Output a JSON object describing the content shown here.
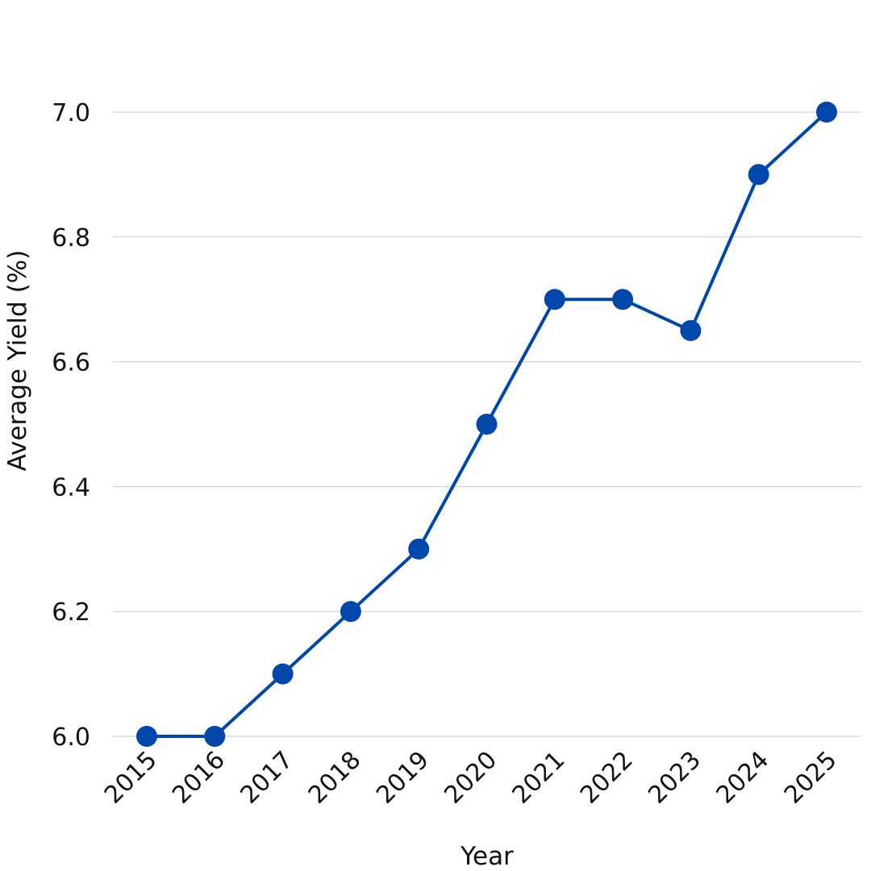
{
  "chart_data": {
    "type": "line",
    "title": "",
    "xlabel": "Year",
    "ylabel": "Average Yield (%)",
    "categories": [
      "2015",
      "2016",
      "2017",
      "2018",
      "2019",
      "2020",
      "2021",
      "2022",
      "2023",
      "2024",
      "2025"
    ],
    "series": [
      {
        "values": [
          6.0,
          6.0,
          6.1,
          6.2,
          6.3,
          6.5,
          6.7,
          6.7,
          6.65,
          6.9,
          7.0
        ],
        "color": "#0047AB"
      }
    ],
    "ylim": [
      6.0,
      7.0
    ],
    "yticks": [
      "6.0",
      "6.2",
      "6.4",
      "6.6",
      "6.8",
      "7.0"
    ],
    "grid": "horizontal",
    "legend": "none"
  }
}
